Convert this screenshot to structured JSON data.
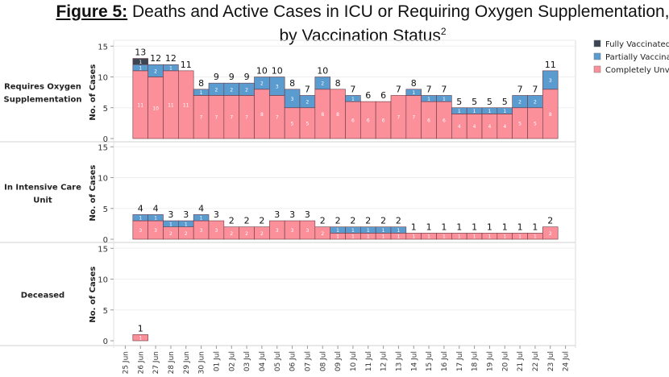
{
  "title": {
    "lead": "Figure 5:",
    "text": " Deaths and Active Cases in ICU or Requiring Oxygen Supplementation,",
    "line2": "by Vaccination Status",
    "superscript": "2"
  },
  "chart_data": {
    "type": "bar",
    "stacked": true,
    "title": "Figure 5: Deaths and Active Cases in ICU or Requiring Oxygen Supplementation, by Vaccination Status",
    "ylabel": "No. of Cases",
    "ylim": [
      0,
      15
    ],
    "yticks": [
      0,
      5,
      10,
      15
    ],
    "grid": true,
    "legend_position": "top-right",
    "legend": [
      {
        "name": "Fully Vaccinated",
        "color": "#3b4652"
      },
      {
        "name": "Partially Vaccinated",
        "color": "#5a9bd0"
      },
      {
        "name": "Completely Unvaccinated",
        "color": "#fb8f9a"
      }
    ],
    "legend_visible_text": [
      "Fully Vaccinated",
      "Partially Vaccina",
      "Completely Unva"
    ],
    "categories": [
      "25 Jun",
      "26 Jun",
      "27 Jun",
      "28 Jun",
      "29 Jun",
      "30 Jun",
      "01 Jul",
      "02 Jul",
      "03 Jul",
      "04 Jul",
      "05 Jul",
      "06 Jul",
      "07 Jul",
      "08 Jul",
      "09 Jul",
      "10 Jul",
      "11 Jul",
      "12 Jul",
      "13 Jul",
      "14 Jul",
      "15 Jul",
      "16 Jul",
      "17 Jul",
      "18 Jul",
      "19 Jul",
      "20 Jul",
      "21 Jul",
      "22 Jul",
      "23 Jul",
      "24 Jul"
    ],
    "panels": [
      {
        "name": "Requires Oxygen Supplementation",
        "label_lines": [
          "Requires Oxygen",
          "Supplementation"
        ],
        "series": [
          {
            "name": "Completely Unvaccinated",
            "values": [
              0,
              11,
              10,
              11,
              11,
              7,
              7,
              7,
              7,
              8,
              7,
              5,
              5,
              8,
              8,
              6,
              6,
              6,
              7,
              7,
              6,
              6,
              4,
              4,
              4,
              4,
              5,
              5,
              8,
              0
            ]
          },
          {
            "name": "Partially Vaccinated",
            "values": [
              0,
              1,
              2,
              1,
              0,
              1,
              2,
              2,
              2,
              2,
              3,
              3,
              2,
              2,
              0,
              1,
              0,
              0,
              0,
              1,
              1,
              1,
              1,
              1,
              1,
              1,
              2,
              2,
              3,
              0
            ]
          },
          {
            "name": "Fully Vaccinated",
            "values": [
              0,
              1,
              0,
              0,
              0,
              0,
              0,
              0,
              0,
              0,
              0,
              0,
              0,
              0,
              0,
              0,
              0,
              0,
              0,
              0,
              0,
              0,
              0,
              0,
              0,
              0,
              0,
              0,
              0,
              0
            ]
          }
        ],
        "totals": [
          0,
          13,
          12,
          12,
          11,
          8,
          9,
          9,
          9,
          10,
          10,
          8,
          7,
          10,
          8,
          7,
          6,
          6,
          7,
          8,
          7,
          7,
          5,
          5,
          5,
          5,
          7,
          7,
          11,
          0
        ]
      },
      {
        "name": "In Intensive Care Unit",
        "label_lines": [
          "In Intensive Care",
          "Unit"
        ],
        "series": [
          {
            "name": "Completely Unvaccinated",
            "values": [
              0,
              3,
              3,
              2,
              2,
              3,
              3,
              2,
              2,
              2,
              3,
              3,
              3,
              2,
              1,
              1,
              1,
              1,
              1,
              1,
              1,
              1,
              1,
              1,
              1,
              1,
              1,
              1,
              2,
              0
            ]
          },
          {
            "name": "Partially Vaccinated",
            "values": [
              0,
              1,
              1,
              1,
              1,
              1,
              0,
              0,
              0,
              0,
              0,
              0,
              0,
              0,
              1,
              1,
              1,
              1,
              1,
              0,
              0,
              0,
              0,
              0,
              0,
              0,
              0,
              0,
              0,
              0
            ]
          },
          {
            "name": "Fully Vaccinated",
            "values": [
              0,
              0,
              0,
              0,
              0,
              0,
              0,
              0,
              0,
              0,
              0,
              0,
              0,
              0,
              0,
              0,
              0,
              0,
              0,
              0,
              0,
              0,
              0,
              0,
              0,
              0,
              0,
              0,
              0,
              0
            ]
          }
        ],
        "totals": [
          0,
          4,
          4,
          3,
          3,
          4,
          3,
          2,
          2,
          2,
          3,
          3,
          3,
          2,
          2,
          2,
          2,
          2,
          2,
          1,
          1,
          1,
          1,
          1,
          1,
          1,
          1,
          1,
          2,
          0
        ]
      },
      {
        "name": "Deceased",
        "label_lines": [
          "Deceased"
        ],
        "series": [
          {
            "name": "Completely Unvaccinated",
            "values": [
              0,
              1,
              0,
              0,
              0,
              0,
              0,
              0,
              0,
              0,
              0,
              0,
              0,
              0,
              0,
              0,
              0,
              0,
              0,
              0,
              0,
              0,
              0,
              0,
              0,
              0,
              0,
              0,
              0,
              0
            ]
          },
          {
            "name": "Partially Vaccinated",
            "values": [
              0,
              0,
              0,
              0,
              0,
              0,
              0,
              0,
              0,
              0,
              0,
              0,
              0,
              0,
              0,
              0,
              0,
              0,
              0,
              0,
              0,
              0,
              0,
              0,
              0,
              0,
              0,
              0,
              0,
              0
            ]
          },
          {
            "name": "Fully Vaccinated",
            "values": [
              0,
              0,
              0,
              0,
              0,
              0,
              0,
              0,
              0,
              0,
              0,
              0,
              0,
              0,
              0,
              0,
              0,
              0,
              0,
              0,
              0,
              0,
              0,
              0,
              0,
              0,
              0,
              0,
              0,
              0
            ]
          }
        ],
        "totals": [
          0,
          1,
          0,
          0,
          0,
          0,
          0,
          0,
          0,
          0,
          0,
          0,
          0,
          0,
          0,
          0,
          0,
          0,
          0,
          0,
          0,
          0,
          0,
          0,
          0,
          0,
          0,
          0,
          0,
          0
        ]
      }
    ]
  }
}
